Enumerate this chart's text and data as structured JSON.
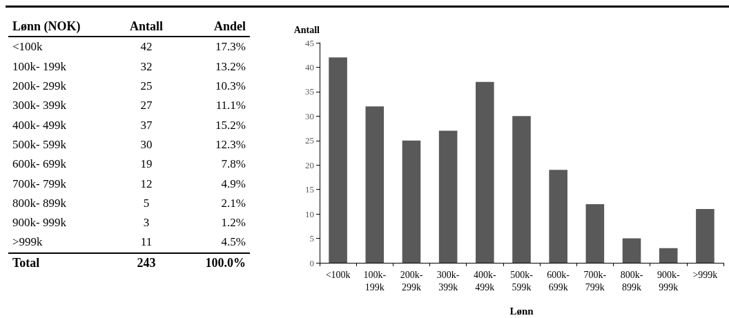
{
  "chart_data": [
    {
      "type": "other",
      "xlabel": "Lønn (NOK)",
      "categories": [
        "<100k",
        "100k- 199k",
        "200k- 299k",
        "300k- 399k",
        "400k- 499k",
        "500k- 599k",
        "600k- 699k",
        "700k- 799k",
        "800k- 899k",
        "900k- 999k",
        ">999k"
      ],
      "series": [
        {
          "name": "Antall",
          "values": [
            42,
            32,
            25,
            27,
            37,
            30,
            19,
            12,
            5,
            3,
            11
          ]
        },
        {
          "name": "Andel",
          "values": [
            17.3,
            13.2,
            10.3,
            11.1,
            15.2,
            12.3,
            7.8,
            4.9,
            2.1,
            1.2,
            4.5
          ],
          "value_labels": [
            "17.3%",
            "13.2%",
            "10.3%",
            "11.1%",
            "15.2%",
            "12.3%",
            "7.8%",
            "4.9%",
            "2.1%",
            "1.2%",
            "4.5%"
          ]
        }
      ],
      "data_labels": true,
      "annotations": [
        "Total",
        "243",
        "100.0%"
      ]
    },
    {
      "type": "bar",
      "xlabel": "Lønn",
      "ylabel": "Antall",
      "categories": [
        "<100k",
        "100k-199k",
        "200k-299k",
        "300k-399k",
        "400k-499k",
        "500k-599k",
        "600k-699k",
        "700k-799k",
        "800k-899k",
        "900k-999k",
        ">999k"
      ],
      "values": [
        42,
        32,
        25,
        27,
        37,
        30,
        19,
        12,
        5,
        3,
        11
      ],
      "color": "#595959",
      "ylim": [
        0,
        45
      ],
      "yticks": [
        0,
        5,
        10,
        15,
        20,
        25,
        30,
        35,
        40,
        45
      ],
      "grid": false
    }
  ]
}
